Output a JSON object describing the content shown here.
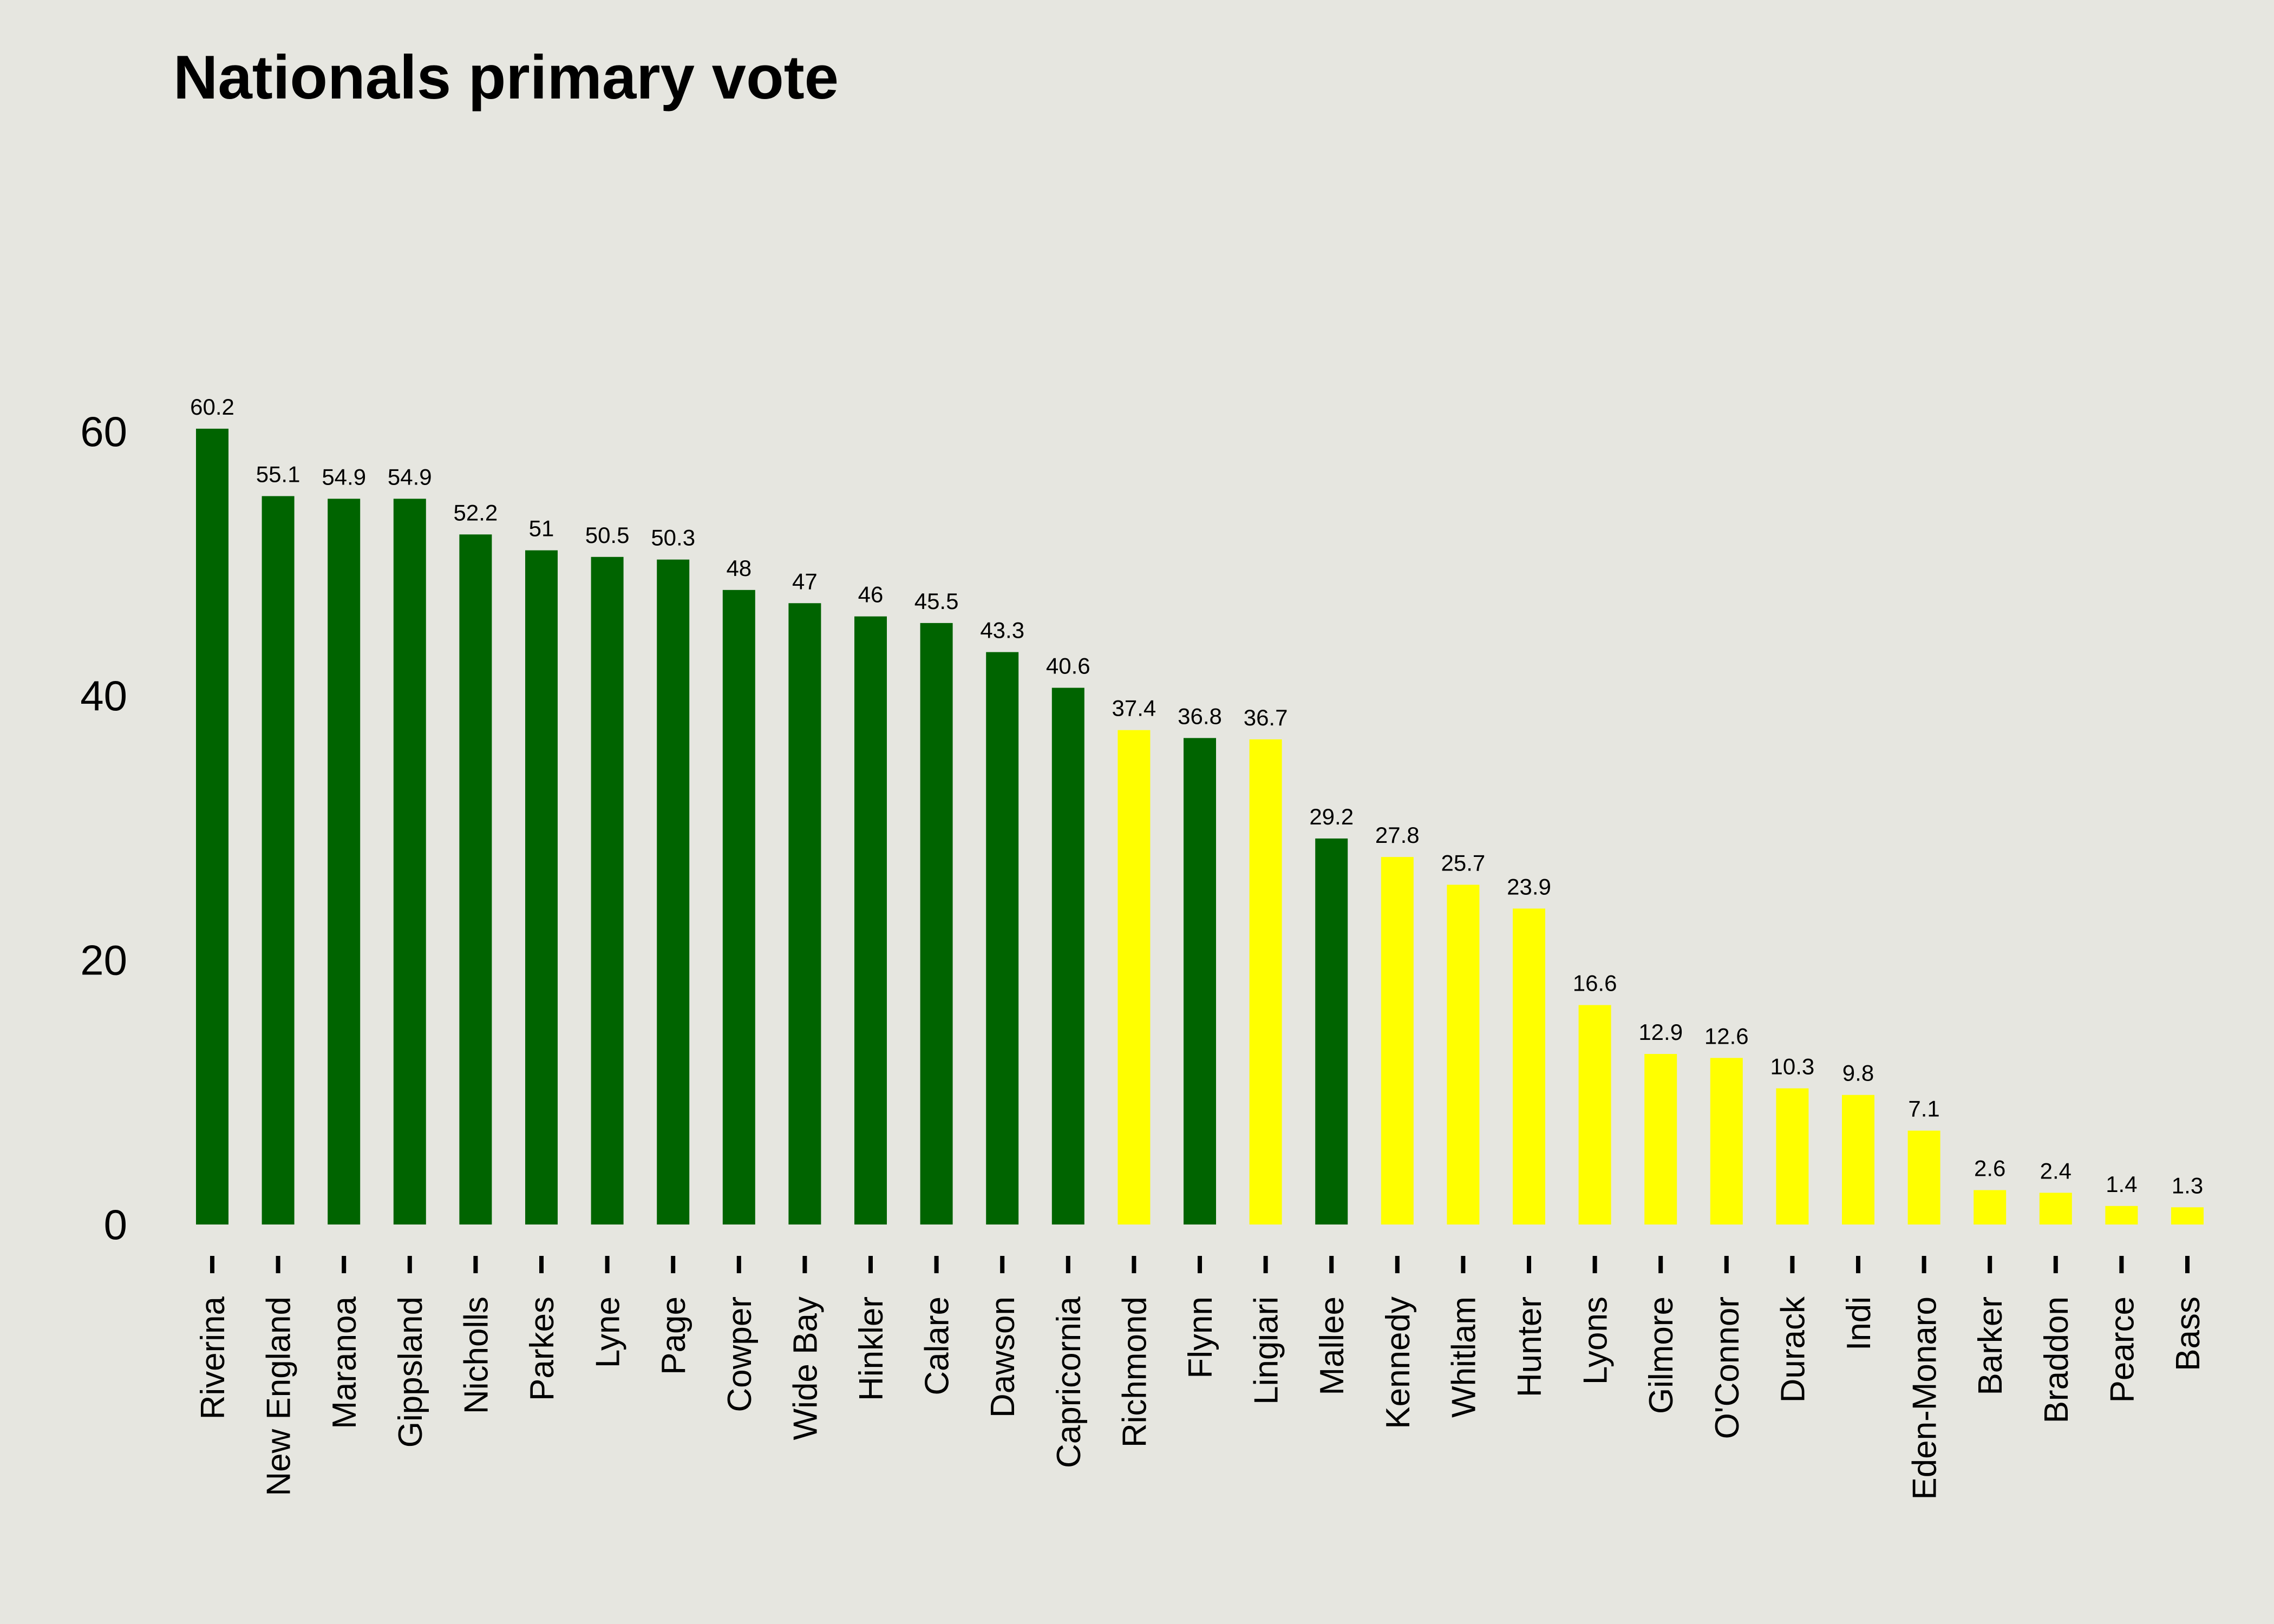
{
  "chart_data": {
    "type": "bar",
    "title": "Nationals primary vote",
    "xlabel": "",
    "ylabel": "",
    "ylim": [
      0,
      65
    ],
    "yticks": [
      0,
      20,
      40,
      60
    ],
    "grid": false,
    "legend": "none",
    "categories": [
      "Riverina",
      "New England",
      "Maranoa",
      "Gippsland",
      "Nicholls",
      "Parkes",
      "Lyne",
      "Page",
      "Cowper",
      "Wide Bay",
      "Hinkler",
      "Calare",
      "Dawson",
      "Capricornia",
      "Richmond",
      "Flynn",
      "Lingiari",
      "Mallee",
      "Kennedy",
      "Whitlam",
      "Hunter",
      "Lyons",
      "Gilmore",
      "O'Connor",
      "Durack",
      "Indi",
      "Eden-Monaro",
      "Barker",
      "Braddon",
      "Pearce",
      "Bass"
    ],
    "values": [
      60.2,
      55.1,
      54.9,
      54.9,
      52.2,
      51,
      50.5,
      50.3,
      48,
      47,
      46,
      45.5,
      43.3,
      40.6,
      37.4,
      36.8,
      36.7,
      29.2,
      27.8,
      25.7,
      23.9,
      16.6,
      12.9,
      12.6,
      10.3,
      9.8,
      7.1,
      2.6,
      2.4,
      1.4,
      1.3
    ],
    "value_labels": [
      "60.2",
      "55.1",
      "54.9",
      "54.9",
      "52.2",
      "51",
      "50.5",
      "50.3",
      "48",
      "47",
      "46",
      "45.5",
      "43.3",
      "40.6",
      "37.4",
      "36.8",
      "36.7",
      "29.2",
      "27.8",
      "25.7",
      "23.9",
      "16.6",
      "12.9",
      "12.6",
      "10.3",
      "9.8",
      "7.1",
      "2.6",
      "2.4",
      "1.4",
      "1.3"
    ],
    "bar_colors": [
      "#006400",
      "#006400",
      "#006400",
      "#006400",
      "#006400",
      "#006400",
      "#006400",
      "#006400",
      "#006400",
      "#006400",
      "#006400",
      "#006400",
      "#006400",
      "#006400",
      "#ffff00",
      "#006400",
      "#ffff00",
      "#006400",
      "#ffff00",
      "#ffff00",
      "#ffff00",
      "#ffff00",
      "#ffff00",
      "#ffff00",
      "#ffff00",
      "#ffff00",
      "#ffff00",
      "#ffff00",
      "#ffff00",
      "#ffff00",
      "#ffff00"
    ],
    "colors": {
      "background": "#e6e6e0",
      "held": "#006400",
      "not_held": "#ffff00",
      "text": "#000000"
    }
  }
}
